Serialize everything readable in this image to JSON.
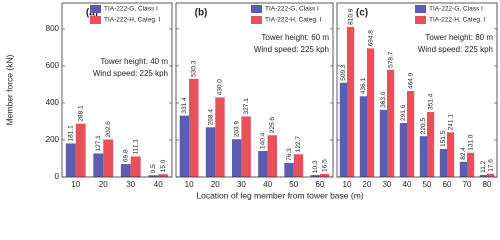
{
  "chart_data": [
    {
      "type": "bar",
      "panel_label": "(a)",
      "y_label": "Member force (kN)",
      "annotations": [
        "Tower height: 40 m",
        "Wind speed: 225 kph"
      ],
      "categories": [
        "10",
        "20",
        "30",
        "40"
      ],
      "series": [
        {
          "name": "TIA-222-G, Class I",
          "color": "#5a5db0",
          "values": [
            181.1,
            127.1,
            69.8,
            9.5
          ],
          "value_labels": [
            "181.1",
            "127.1",
            "69.8",
            "9.5"
          ]
        },
        {
          "name": "TIA-222-H, Categ. I",
          "color": "#e8505b",
          "values": [
            288.1,
            202.6,
            111.1,
            15.0
          ],
          "value_labels": [
            "288.1",
            "202.6",
            "111.1",
            "15.0"
          ]
        }
      ],
      "ylim": [
        0,
        940
      ],
      "yticks": [
        0,
        200,
        400,
        600,
        800
      ],
      "legend": "upper right"
    },
    {
      "type": "bar",
      "panel_label": "(b)",
      "x_label": "Location of leg member from tower base (m)",
      "annotations": [
        "Tower height: 60 m",
        "Wind speed: 225 kph"
      ],
      "categories": [
        "10",
        "20",
        "30",
        "40",
        "50",
        "60"
      ],
      "series": [
        {
          "name": "TIA-222-G, Class I",
          "color": "#5a5db0",
          "values": [
            331.4,
            268.4,
            203.9,
            140.4,
            76.3,
            10.3
          ],
          "value_labels": [
            "331.4",
            "268.4",
            "203.9",
            "140.4",
            "76.3",
            "10.3"
          ]
        },
        {
          "name": "TIA-222-H, Categ. I",
          "color": "#e8505b",
          "values": [
            530.3,
            430.0,
            327.1,
            225.6,
            122.7,
            16.5
          ],
          "value_labels": [
            "530.3",
            "430.0",
            "327.1",
            "225.6",
            "122.7",
            "16.5"
          ]
        }
      ],
      "ylim": [
        0,
        940
      ],
      "legend": "upper right"
    },
    {
      "type": "bar",
      "panel_label": "(c)",
      "annotations": [
        "Tower height: 80 m",
        "Wind speed: 225 kph"
      ],
      "categories": [
        "10",
        "20",
        "30",
        "40",
        "50",
        "60",
        "70",
        "80"
      ],
      "series": [
        {
          "name": "TIA-222-G, Class I",
          "color": "#5a5db0",
          "values": [
            509.3,
            436.1,
            363.0,
            291.6,
            220.5,
            151.5,
            82.4,
            11.2
          ],
          "value_labels": [
            "509.3",
            "436.1",
            "363.0",
            "291.6",
            "220.5",
            "151.5",
            "82.4",
            "11.2"
          ]
        },
        {
          "name": "TIA-222-H, Categ. I",
          "color": "#e8505b",
          "values": [
            810.9,
            694.8,
            578.7,
            464.9,
            351.4,
            241.1,
            131.0,
            17.6
          ],
          "value_labels": [
            "810.9",
            "694.8",
            "578.7",
            "464.9",
            "351.4",
            "241.1",
            "131.0",
            "17.6"
          ]
        }
      ],
      "ylim": [
        0,
        940
      ],
      "legend": "upper right"
    }
  ]
}
